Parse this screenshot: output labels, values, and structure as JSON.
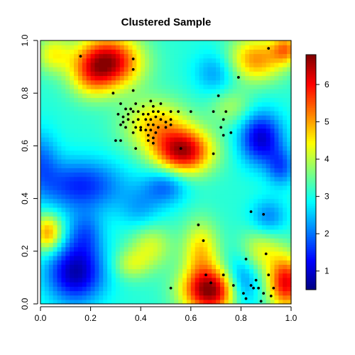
{
  "chart_data": {
    "type": "heatmap",
    "title": "Clustered Sample",
    "xlabel": "",
    "ylabel": "",
    "xlim": [
      0,
      1
    ],
    "ylim": [
      0,
      1
    ],
    "x_ticks": [
      "0.0",
      "0.2",
      "0.4",
      "0.6",
      "0.8",
      "1.0"
    ],
    "y_ticks": [
      "0.0",
      "0.2",
      "0.4",
      "0.6",
      "0.8",
      "1.0"
    ],
    "colorbar": {
      "range": [
        0.5,
        6.8
      ],
      "ticks": [
        "1",
        "2",
        "3",
        "4",
        "5",
        "6"
      ],
      "tick_values": [
        1,
        2,
        3,
        4,
        5,
        6
      ],
      "colors": [
        "#00007f",
        "#0000ff",
        "#007fff",
        "#00ffff",
        "#7fff7f",
        "#ffff00",
        "#ff7f00",
        "#ff0000",
        "#7f0000"
      ]
    },
    "grid_size": 60,
    "field": {
      "base": 3.1,
      "bumps": [
        {
          "x": 0.27,
          "y": 0.92,
          "amp": 3.4,
          "sx": 0.09,
          "sy": 0.07
        },
        {
          "x": 0.2,
          "y": 0.86,
          "amp": 1.0,
          "sx": 0.06,
          "sy": 0.06
        },
        {
          "x": 0.57,
          "y": 0.58,
          "amp": 3.3,
          "sx": 0.08,
          "sy": 0.06
        },
        {
          "x": 0.46,
          "y": 0.68,
          "amp": 1.6,
          "sx": 0.09,
          "sy": 0.07
        },
        {
          "x": 0.68,
          "y": 0.05,
          "amp": 3.6,
          "sx": 0.08,
          "sy": 0.06
        },
        {
          "x": 0.64,
          "y": 0.2,
          "amp": 1.6,
          "sx": 0.05,
          "sy": 0.08
        },
        {
          "x": 0.98,
          "y": 0.08,
          "amp": 3.0,
          "sx": 0.05,
          "sy": 0.07
        },
        {
          "x": 0.86,
          "y": 0.93,
          "amp": 2.0,
          "sx": 0.08,
          "sy": 0.06
        },
        {
          "x": 0.98,
          "y": 0.97,
          "amp": 1.8,
          "sx": 0.04,
          "sy": 0.04
        },
        {
          "x": 0.03,
          "y": 0.27,
          "amp": 2.0,
          "sx": 0.04,
          "sy": 0.05
        },
        {
          "x": 0.05,
          "y": 0.95,
          "amp": 1.2,
          "sx": 0.05,
          "sy": 0.05
        },
        {
          "x": 0.44,
          "y": 0.22,
          "amp": 1.1,
          "sx": 0.06,
          "sy": 0.06
        },
        {
          "x": 0.36,
          "y": 0.15,
          "amp": 0.9,
          "sx": 0.05,
          "sy": 0.04
        },
        {
          "x": 0.88,
          "y": 0.2,
          "amp": 1.2,
          "sx": 0.06,
          "sy": 0.06
        },
        {
          "x": 0.76,
          "y": 0.75,
          "amp": 0.8,
          "sx": 0.06,
          "sy": 0.05
        },
        {
          "x": 0.14,
          "y": 0.12,
          "amp": -2.3,
          "sx": 0.08,
          "sy": 0.08
        },
        {
          "x": 0.18,
          "y": 0.27,
          "amp": -1.0,
          "sx": 0.05,
          "sy": 0.06
        },
        {
          "x": 0.16,
          "y": 0.45,
          "amp": -1.6,
          "sx": 0.12,
          "sy": 0.07
        },
        {
          "x": 0.88,
          "y": 0.63,
          "amp": -2.1,
          "sx": 0.06,
          "sy": 0.07
        },
        {
          "x": 0.96,
          "y": 0.52,
          "amp": -1.2,
          "sx": 0.04,
          "sy": 0.05
        },
        {
          "x": 0.8,
          "y": 0.08,
          "amp": -1.6,
          "sx": 0.05,
          "sy": 0.07
        },
        {
          "x": 0.91,
          "y": 0.33,
          "amp": -1.0,
          "sx": 0.05,
          "sy": 0.05
        },
        {
          "x": 0.5,
          "y": 0.45,
          "amp": -1.2,
          "sx": 0.06,
          "sy": 0.05
        },
        {
          "x": 0.0,
          "y": 0.55,
          "amp": -1.0,
          "sx": 0.05,
          "sy": 0.08
        },
        {
          "x": 0.7,
          "y": 0.88,
          "amp": -0.9,
          "sx": 0.06,
          "sy": 0.06
        },
        {
          "x": 0.4,
          "y": 0.36,
          "amp": -0.7,
          "sx": 0.06,
          "sy": 0.06
        }
      ]
    },
    "points": [
      [
        0.16,
        0.94
      ],
      [
        0.37,
        0.93
      ],
      [
        0.37,
        0.89
      ],
      [
        0.91,
        0.97
      ],
      [
        0.79,
        0.86
      ],
      [
        0.29,
        0.8
      ],
      [
        0.37,
        0.81
      ],
      [
        0.44,
        0.77
      ],
      [
        0.71,
        0.79
      ],
      [
        0.32,
        0.76
      ],
      [
        0.34,
        0.74
      ],
      [
        0.36,
        0.74
      ],
      [
        0.38,
        0.76
      ],
      [
        0.41,
        0.75
      ],
      [
        0.45,
        0.75
      ],
      [
        0.48,
        0.76
      ],
      [
        0.31,
        0.72
      ],
      [
        0.33,
        0.71
      ],
      [
        0.35,
        0.72
      ],
      [
        0.37,
        0.73
      ],
      [
        0.39,
        0.73
      ],
      [
        0.41,
        0.72
      ],
      [
        0.43,
        0.72
      ],
      [
        0.45,
        0.73
      ],
      [
        0.47,
        0.73
      ],
      [
        0.49,
        0.72
      ],
      [
        0.52,
        0.73
      ],
      [
        0.55,
        0.73
      ],
      [
        0.6,
        0.73
      ],
      [
        0.69,
        0.73
      ],
      [
        0.74,
        0.73
      ],
      [
        0.33,
        0.69
      ],
      [
        0.35,
        0.7
      ],
      [
        0.37,
        0.69
      ],
      [
        0.39,
        0.7
      ],
      [
        0.42,
        0.7
      ],
      [
        0.44,
        0.7
      ],
      [
        0.46,
        0.71
      ],
      [
        0.48,
        0.7
      ],
      [
        0.5,
        0.69
      ],
      [
        0.52,
        0.7
      ],
      [
        0.73,
        0.7
      ],
      [
        0.32,
        0.68
      ],
      [
        0.34,
        0.67
      ],
      [
        0.38,
        0.67
      ],
      [
        0.4,
        0.67
      ],
      [
        0.43,
        0.68
      ],
      [
        0.45,
        0.68
      ],
      [
        0.47,
        0.67
      ],
      [
        0.5,
        0.67
      ],
      [
        0.52,
        0.68
      ],
      [
        0.72,
        0.67
      ],
      [
        0.37,
        0.65
      ],
      [
        0.4,
        0.66
      ],
      [
        0.42,
        0.66
      ],
      [
        0.44,
        0.66
      ],
      [
        0.46,
        0.65
      ],
      [
        0.73,
        0.64
      ],
      [
        0.76,
        0.65
      ],
      [
        0.43,
        0.64
      ],
      [
        0.45,
        0.63
      ],
      [
        0.3,
        0.62
      ],
      [
        0.32,
        0.62
      ],
      [
        0.43,
        0.62
      ],
      [
        0.45,
        0.61
      ],
      [
        0.38,
        0.59
      ],
      [
        0.56,
        0.59
      ],
      [
        0.69,
        0.57
      ],
      [
        0.84,
        0.35
      ],
      [
        0.89,
        0.34
      ],
      [
        0.63,
        0.3
      ],
      [
        0.65,
        0.24
      ],
      [
        0.9,
        0.19
      ],
      [
        0.82,
        0.17
      ],
      [
        0.66,
        0.11
      ],
      [
        0.73,
        0.11
      ],
      [
        0.91,
        0.11
      ],
      [
        0.86,
        0.09
      ],
      [
        0.52,
        0.06
      ],
      [
        0.68,
        0.08
      ],
      [
        0.77,
        0.07
      ],
      [
        0.84,
        0.07
      ],
      [
        0.85,
        0.06
      ],
      [
        0.87,
        0.06
      ],
      [
        0.93,
        0.06
      ],
      [
        0.81,
        0.04
      ],
      [
        0.89,
        0.04
      ],
      [
        0.92,
        0.03
      ],
      [
        0.82,
        0.02
      ],
      [
        0.88,
        0.01
      ]
    ]
  }
}
